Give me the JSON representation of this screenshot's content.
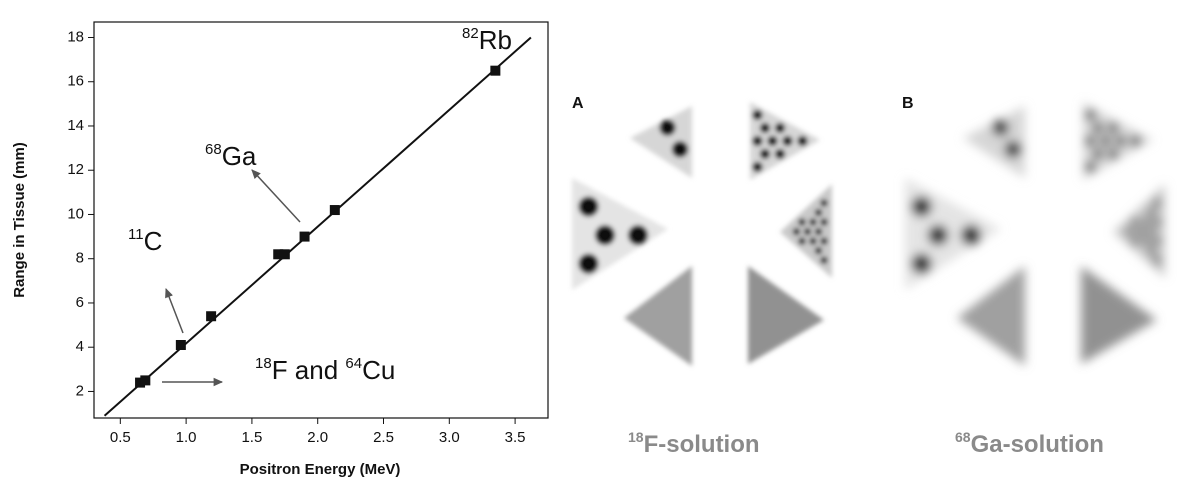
{
  "chart_data": {
    "type": "scatter",
    "xlabel": "Positron Energy (MeV)",
    "ylabel": "Range in Tissue (mm)",
    "x": [
      0.65,
      0.69,
      0.96,
      1.19,
      1.7,
      1.75,
      1.9,
      2.13,
      3.35
    ],
    "values": [
      2.4,
      2.5,
      4.1,
      5.4,
      8.2,
      8.2,
      9.0,
      10.2,
      16.5
    ],
    "color": "#111111",
    "fit": {
      "x": [
        0.38,
        3.62
      ],
      "values": [
        0.9,
        18.0
      ]
    },
    "xlim": [
      0.3,
      3.75
    ],
    "ylim": [
      0.8,
      18.7
    ],
    "xticks": [
      0.5,
      {
        "value": 1,
        "label": "1.0"
      },
      1.5,
      {
        "value": 2,
        "label": "2.0"
      },
      2.5,
      {
        "value": 3,
        "label": "3.0"
      },
      3.5
    ],
    "yticks": [
      2,
      4,
      6,
      8,
      10,
      12,
      14,
      16,
      18
    ],
    "annotations": [
      {
        "sup": "82",
        "text": "Rb"
      },
      {
        "sup": "68",
        "text": "Ga"
      },
      {
        "sup": "11",
        "text": "C"
      },
      {
        "sup": "18",
        "text": "F and ",
        "sup2": "64",
        "text2": "Cu"
      }
    ]
  },
  "images": [
    {
      "letter": "A",
      "sup": "18",
      "caption": "F-solution"
    },
    {
      "letter": "B",
      "sup": "68",
      "caption": "Ga-solution"
    }
  ]
}
